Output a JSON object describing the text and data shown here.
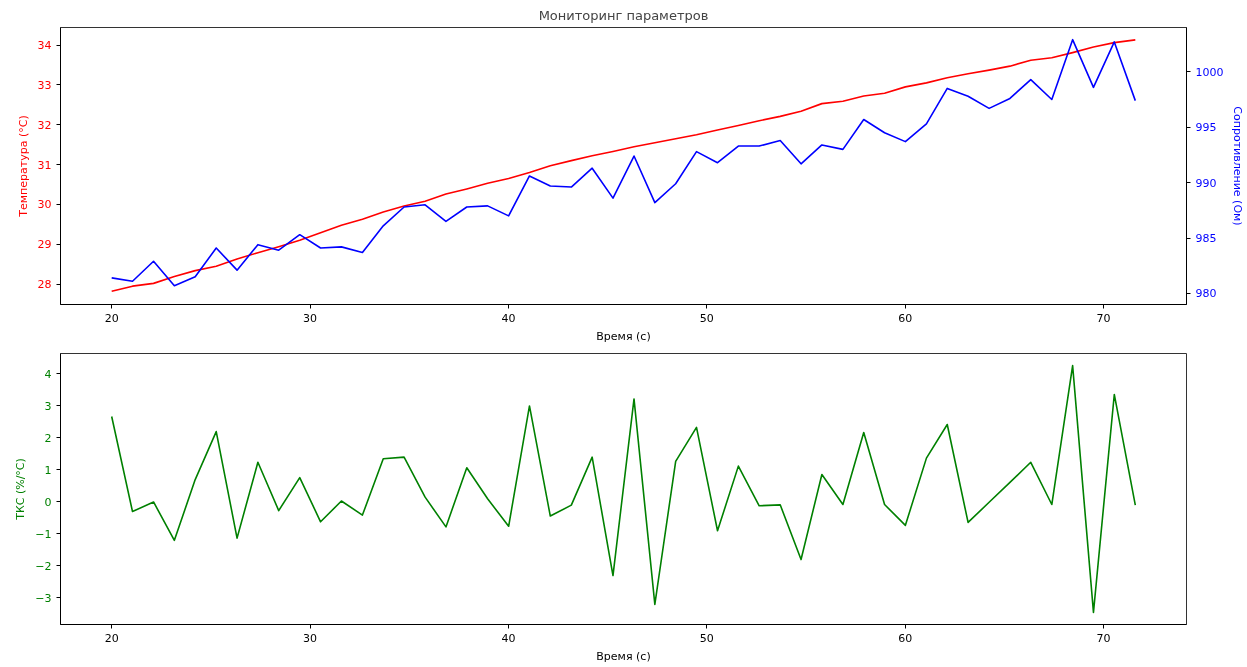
{
  "chart_data": [
    {
      "type": "line",
      "title": "Мониторинг параметров",
      "xlabel": "Время (с)",
      "ylabel": "Температура (°C)",
      "y2label": "Сопротивление (Ом)",
      "x": [
        20,
        21.05,
        22.11,
        23.16,
        24.21,
        25.27,
        26.32,
        27.37,
        28.42,
        29.48,
        30.53,
        31.58,
        32.64,
        33.69,
        34.74,
        35.8,
        36.85,
        37.9,
        38.95,
        40.01,
        41.06,
        42.11,
        43.17,
        44.22,
        45.27,
        46.33,
        47.38,
        48.43,
        49.48,
        50.54,
        51.59,
        52.64,
        53.7,
        54.75,
        55.8,
        56.86,
        57.91,
        58.96,
        60.01,
        61.07,
        62.12,
        63.17,
        64.23,
        65.28,
        66.33,
        67.39,
        68.44,
        69.49,
        70.54,
        71.6
      ],
      "series": [
        {
          "color": "#ff0000",
          "values": [
            27.82,
            27.95,
            28.02,
            28.19,
            28.34,
            28.45,
            28.63,
            28.79,
            28.94,
            29.1,
            29.29,
            29.48,
            29.63,
            29.81,
            29.96,
            30.08,
            30.26,
            30.39,
            30.53,
            30.65,
            30.8,
            30.97,
            31.1,
            31.22,
            31.33,
            31.45,
            31.55,
            31.65,
            31.75,
            31.87,
            31.98,
            32.1,
            32.21,
            32.34,
            32.53,
            32.59,
            32.72,
            32.79,
            32.95,
            33.05,
            33.18,
            33.28,
            33.37,
            33.47,
            33.62,
            33.68,
            33.81,
            33.95,
            34.06,
            34.13
          ]
        },
        {
          "color": "#0000ff",
          "axis": "y2",
          "values": [
            981.4,
            981.1,
            982.9,
            980.7,
            981.5,
            984.1,
            982.1,
            984.4,
            983.9,
            985.3,
            984.1,
            984.2,
            983.7,
            986.1,
            987.8,
            988.0,
            986.5,
            987.8,
            987.9,
            987.0,
            990.6,
            989.7,
            989.6,
            991.3,
            988.6,
            992.4,
            988.2,
            989.9,
            992.8,
            991.8,
            993.3,
            993.3,
            993.8,
            991.7,
            993.4,
            993.0,
            995.7,
            994.5,
            993.7,
            995.3,
            998.5,
            997.8,
            996.7,
            997.6,
            999.3,
            997.5,
            1002.9,
            998.6,
            1002.7,
            997.4
          ]
        }
      ],
      "xlim": [
        17.42,
        74.18
      ],
      "xticks": [
        20,
        30,
        40,
        50,
        60,
        70
      ],
      "ylim": [
        27.49,
        34.44
      ],
      "yticks": [
        28,
        29,
        30,
        31,
        32,
        33,
        34
      ],
      "y2lim": [
        979.0,
        1004.0
      ],
      "y2ticks": [
        980,
        985,
        990,
        995,
        1000
      ],
      "grid": false,
      "line_style": "solid"
    },
    {
      "type": "line",
      "xlabel": "Время (с)",
      "ylabel": "ТКС (%/°C)",
      "x": [
        20,
        21.05,
        22.11,
        23.16,
        24.21,
        25.27,
        26.32,
        27.37,
        28.42,
        29.48,
        30.53,
        31.58,
        32.64,
        33.69,
        34.74,
        35.8,
        36.85,
        37.9,
        38.95,
        40.01,
        41.06,
        42.11,
        43.17,
        44.22,
        45.27,
        46.33,
        47.38,
        48.43,
        49.48,
        50.54,
        51.59,
        52.64,
        53.7,
        54.75,
        55.8,
        56.86,
        57.91,
        58.96,
        60.01,
        61.07,
        62.12,
        63.17,
        64.23,
        65.28,
        66.33,
        67.39,
        68.44,
        69.49,
        70.54,
        71.6
      ],
      "series": [
        {
          "color": "#008000",
          "values": [
            2.67,
            -0.3,
            0.0,
            -1.2,
            0.7,
            2.2,
            -1.13,
            1.24,
            -0.27,
            0.76,
            -0.62,
            0.03,
            -0.41,
            1.35,
            1.4,
            0.15,
            -0.78,
            1.07,
            0.1,
            -0.76,
            3.0,
            -0.44,
            -0.1,
            1.4,
            -2.3,
            3.22,
            -3.2,
            1.27,
            2.33,
            -0.9,
            1.12,
            -0.12,
            -0.09,
            -1.8,
            0.86,
            -0.08,
            2.17,
            -0.08,
            -0.73,
            1.37,
            2.42,
            -0.64,
            -0.01,
            0.61,
            1.24,
            -0.08,
            4.26,
            -3.45,
            3.36,
            -0.1
          ]
        }
      ],
      "xlim": [
        17.42,
        74.18
      ],
      "xticks": [
        20,
        30,
        40,
        50,
        60,
        70
      ],
      "ylim": [
        -3.83,
        4.64
      ],
      "yticks": [
        -3,
        -2,
        -1,
        0,
        1,
        2,
        3,
        4
      ],
      "grid": false,
      "line_style": "solid"
    }
  ]
}
